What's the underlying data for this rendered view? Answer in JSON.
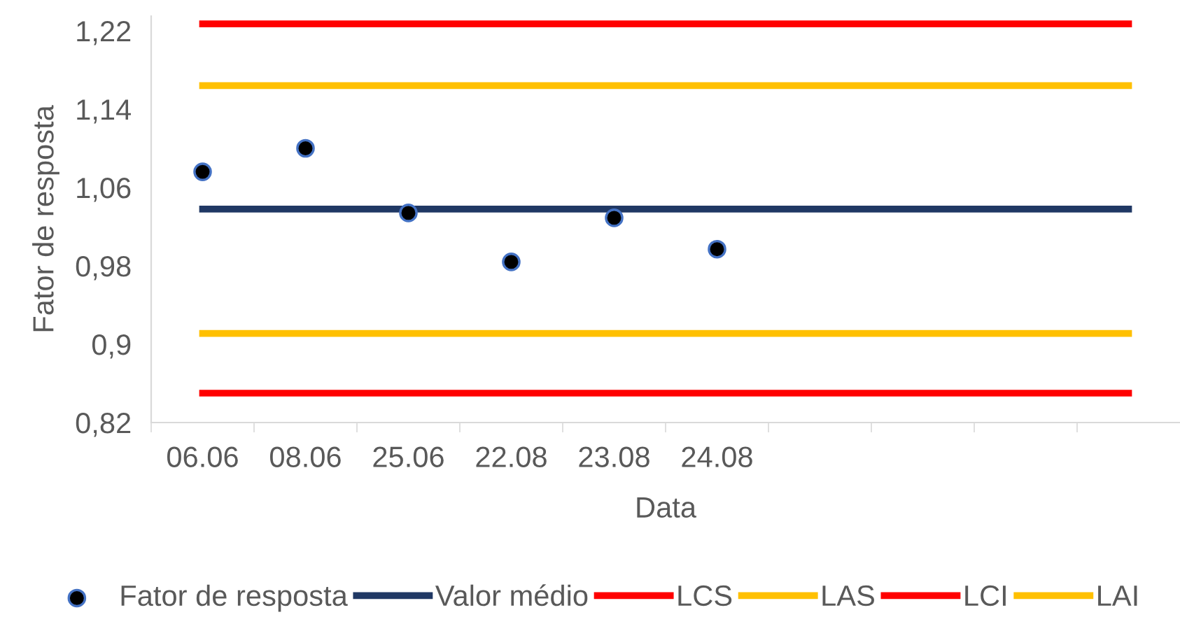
{
  "chart_data": {
    "type": "line",
    "xlabel": "Data",
    "ylabel": "Fator de resposta",
    "categories": [
      "06.06",
      "08.06",
      "25.06",
      "22.08",
      "23.08",
      "24.08",
      null,
      null,
      null,
      null
    ],
    "ylim": [
      0.82,
      1.235
    ],
    "yticks": [
      {
        "value": 0.82,
        "label": "0,82"
      },
      {
        "value": 0.9,
        "label": "0,9"
      },
      {
        "value": 0.98,
        "label": "0,98"
      },
      {
        "value": 1.06,
        "label": "1,06"
      },
      {
        "value": 1.14,
        "label": "1,14"
      },
      {
        "value": 1.22,
        "label": "1,22"
      }
    ],
    "grid": false,
    "legend": "bottom",
    "series": [
      {
        "name": "Fator de resposta",
        "type": "scatter",
        "marker": "circle",
        "color": "#000000",
        "values": [
          1.076,
          1.1,
          1.034,
          0.984,
          1.029,
          0.997,
          null,
          null,
          null,
          null
        ]
      },
      {
        "name": "Valor médio",
        "color": "#203864",
        "values": [
          1.038,
          1.038,
          1.038,
          1.038,
          1.038,
          1.038,
          1.038,
          1.038,
          1.038,
          1.038
        ]
      },
      {
        "name": "LCS",
        "color": "#ff0000",
        "values": [
          1.227,
          1.227,
          1.227,
          1.227,
          1.227,
          1.227,
          1.227,
          1.227,
          1.227,
          1.227
        ]
      },
      {
        "name": "LAS",
        "color": "#ffc000",
        "values": [
          1.164,
          1.164,
          1.164,
          1.164,
          1.164,
          1.164,
          1.164,
          1.164,
          1.164,
          1.164
        ]
      },
      {
        "name": "LCI",
        "color": "#ff0000",
        "values": [
          0.85,
          0.85,
          0.85,
          0.85,
          0.85,
          0.85,
          0.85,
          0.85,
          0.85,
          0.85
        ]
      },
      {
        "name": "LAI",
        "color": "#ffc000",
        "values": [
          0.911,
          0.911,
          0.911,
          0.911,
          0.911,
          0.911,
          0.911,
          0.911,
          0.911,
          0.911
        ]
      }
    ]
  }
}
